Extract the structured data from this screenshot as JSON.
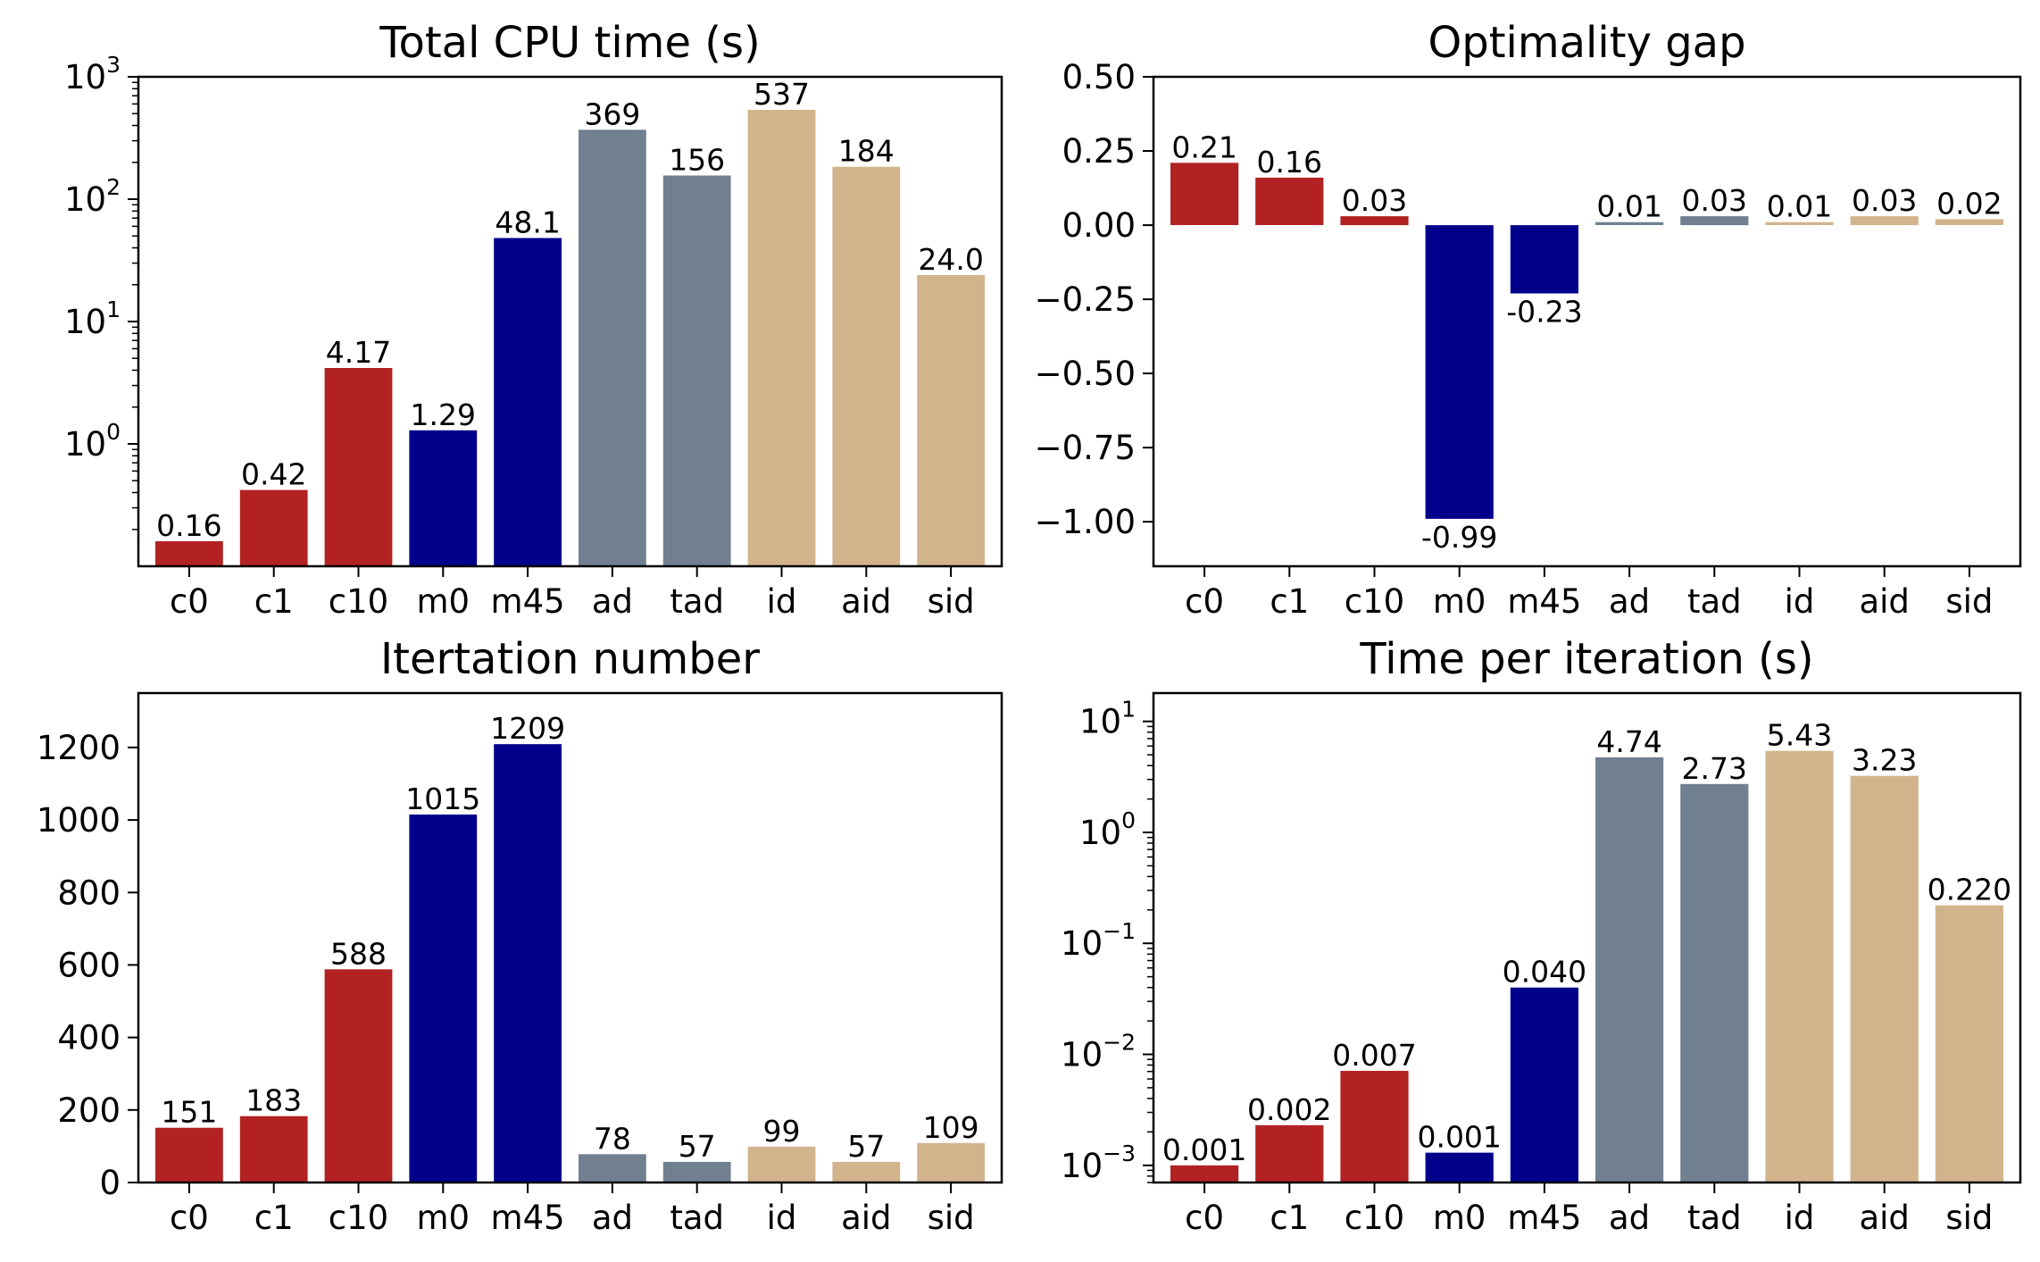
{
  "colors": {
    "c": "#b22222",
    "m": "#00008b",
    "a": "#708090",
    "i": "#d2b48c"
  },
  "categories": [
    "c0",
    "c1",
    "c10",
    "m0",
    "m45",
    "ad",
    "tad",
    "id",
    "aid",
    "sid"
  ],
  "category_color_keys": [
    "c",
    "c",
    "c",
    "m",
    "m",
    "a",
    "a",
    "i",
    "i",
    "i"
  ],
  "chart_data": [
    {
      "type": "bar",
      "title": "Total CPU time (s)",
      "categories": [
        "c0",
        "c1",
        "c10",
        "m0",
        "m45",
        "ad",
        "tad",
        "id",
        "aid",
        "sid"
      ],
      "values": [
        0.16,
        0.42,
        4.17,
        1.29,
        48.1,
        369,
        156,
        537,
        184,
        24.0
      ],
      "labels": [
        "0.16",
        "0.42",
        "4.17",
        "1.29",
        "48.1",
        "369",
        "156",
        "537",
        "184",
        "24.0"
      ],
      "yscale": "log",
      "ylim": [
        0.1,
        1000
      ],
      "yticks": [
        1,
        10,
        100,
        1000
      ],
      "ytick_labels": [
        [
          "10",
          "0"
        ],
        [
          "10",
          "1"
        ],
        [
          "10",
          "2"
        ],
        [
          "10",
          "3"
        ]
      ],
      "xlabel": "",
      "ylabel": "",
      "grid": false,
      "legend": null
    },
    {
      "type": "bar",
      "title": "Optimality gap",
      "categories": [
        "c0",
        "c1",
        "c10",
        "m0",
        "m45",
        "ad",
        "tad",
        "id",
        "aid",
        "sid"
      ],
      "values": [
        0.21,
        0.16,
        0.03,
        -0.99,
        -0.23,
        0.01,
        0.03,
        0.01,
        0.03,
        0.02
      ],
      "labels": [
        "0.21",
        "0.16",
        "0.03",
        "-0.99",
        "-0.23",
        "0.01",
        "0.03",
        "0.01",
        "0.03",
        "0.02"
      ],
      "yscale": "linear",
      "ylim": [
        -1.15,
        0.5
      ],
      "yticks": [
        -1.0,
        -0.75,
        -0.5,
        -0.25,
        0.0,
        0.25,
        0.5
      ],
      "ytick_labels": [
        "−1.00",
        "−0.75",
        "−0.50",
        "−0.25",
        "0.00",
        "0.25",
        "0.50"
      ],
      "xlabel": "",
      "ylabel": "",
      "grid": false,
      "legend": null
    },
    {
      "type": "bar",
      "title": "Itertation number",
      "categories": [
        "c0",
        "c1",
        "c10",
        "m0",
        "m45",
        "ad",
        "tad",
        "id",
        "aid",
        "sid"
      ],
      "values": [
        151,
        183,
        588,
        1015,
        1209,
        78,
        57,
        99,
        57,
        109
      ],
      "labels": [
        "151",
        "183",
        "588",
        "1015",
        "1209",
        "78",
        "57",
        "99",
        "57",
        "109"
      ],
      "yscale": "linear",
      "ylim": [
        0,
        1350
      ],
      "yticks": [
        0,
        200,
        400,
        600,
        800,
        1000,
        1200
      ],
      "ytick_labels": [
        "0",
        "200",
        "400",
        "600",
        "800",
        "1000",
        "1200"
      ],
      "xlabel": "",
      "ylabel": "",
      "grid": false,
      "legend": null
    },
    {
      "type": "bar",
      "title": "Time per iteration (s)",
      "categories": [
        "c0",
        "c1",
        "c10",
        "m0",
        "m45",
        "ad",
        "tad",
        "id",
        "aid",
        "sid"
      ],
      "values": [
        0.001,
        0.0023,
        0.0071,
        0.0013,
        0.04,
        4.74,
        2.73,
        5.43,
        3.23,
        0.22
      ],
      "labels": [
        "0.001",
        "0.002",
        "0.007",
        "0.001",
        "0.040",
        "4.74",
        "2.73",
        "5.43",
        "3.23",
        "0.220"
      ],
      "yscale": "log",
      "ylim": [
        0.0007,
        18
      ],
      "yticks": [
        0.001,
        0.01,
        0.1,
        1,
        10
      ],
      "ytick_labels": [
        [
          "10",
          "−3"
        ],
        [
          "10",
          "−2"
        ],
        [
          "10",
          "−1"
        ],
        [
          "10",
          "0"
        ],
        [
          "10",
          "1"
        ]
      ],
      "xlabel": "",
      "ylabel": "",
      "grid": false,
      "legend": null
    }
  ]
}
